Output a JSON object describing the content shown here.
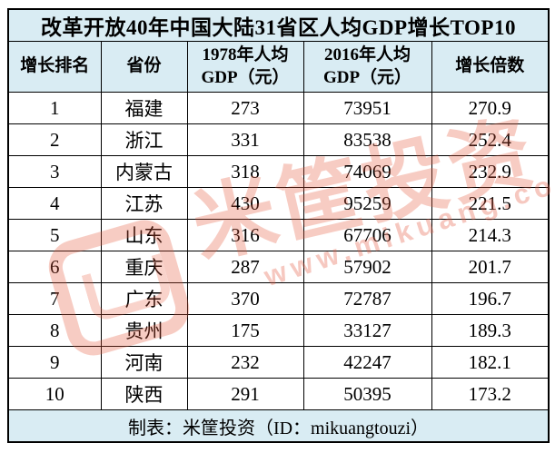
{
  "colors": {
    "band_bg": "#d9ecf3",
    "row_bg": "#ffffff",
    "border": "#000000",
    "text": "#000000",
    "watermark": "#e6553a"
  },
  "watermark": {
    "logo": "mikuang-logo",
    "brand_text": "米筐投资",
    "url_text": "www.mikuang.com"
  },
  "chart_data": {
    "type": "table",
    "title": "改革开放40年中国大陆31省区人均GDP增长TOP10",
    "columns": [
      "增长排名",
      "省份",
      "1978年人均\nGDP（元）",
      "2016年人均\nGDP（元）",
      "增长倍数"
    ],
    "rows": [
      [
        "1",
        "福建",
        "273",
        "73951",
        "270.9"
      ],
      [
        "2",
        "浙江",
        "331",
        "83538",
        "252.4"
      ],
      [
        "3",
        "内蒙古",
        "318",
        "74069",
        "232.9"
      ],
      [
        "4",
        "江苏",
        "430",
        "95259",
        "221.5"
      ],
      [
        "5",
        "山东",
        "316",
        "67706",
        "214.3"
      ],
      [
        "6",
        "重庆",
        "287",
        "57902",
        "201.7"
      ],
      [
        "7",
        "广东",
        "370",
        "72787",
        "196.7"
      ],
      [
        "8",
        "贵州",
        "175",
        "33127",
        "189.3"
      ],
      [
        "9",
        "河南",
        "232",
        "42247",
        "182.1"
      ],
      [
        "10",
        "陕西",
        "291",
        "50395",
        "173.2"
      ]
    ],
    "footer": "制表：米筐投资（ID：mikuangtouzi）"
  }
}
